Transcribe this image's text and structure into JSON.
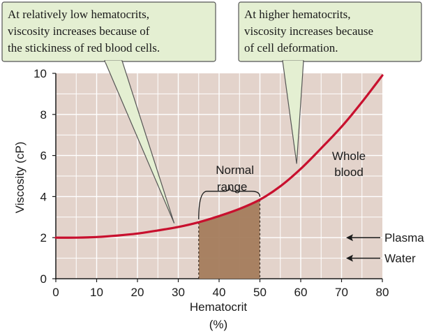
{
  "chart_data": {
    "type": "line",
    "xlabel": [
      "Hematocrit",
      "(%)"
    ],
    "ylabel": "Viscosity (cP)",
    "xlim": [
      0,
      80
    ],
    "ylim": [
      0,
      10
    ],
    "xticks": [
      0,
      10,
      20,
      30,
      40,
      50,
      60,
      70,
      80
    ],
    "yticks": [
      0,
      2,
      4,
      6,
      8,
      10
    ],
    "grid": true,
    "series": [
      {
        "name": "Whole blood",
        "color": "#c8102e",
        "x": [
          0,
          5,
          10,
          15,
          20,
          25,
          30,
          35,
          40,
          45,
          50,
          55,
          60,
          65,
          70,
          75,
          80
        ],
        "y": [
          2.0,
          2.0,
          2.03,
          2.1,
          2.2,
          2.35,
          2.52,
          2.75,
          3.05,
          3.4,
          3.85,
          4.5,
          5.35,
          6.35,
          7.4,
          8.6,
          9.9
        ]
      }
    ],
    "normal_range": {
      "label": [
        "Normal",
        "range"
      ],
      "x": [
        35,
        50
      ]
    },
    "reference_arrows": [
      {
        "label": "Plasma",
        "y": 2.0
      },
      {
        "label": "Water",
        "y": 1.0
      }
    ],
    "callouts": [
      {
        "lines": [
          "At relatively low hematocrits,",
          "viscosity increases because of",
          "the stickiness of red blood cells."
        ],
        "pointer_x": 29,
        "pointer_y": 2.7
      },
      {
        "lines": [
          "At higher hematocrits,",
          "viscosity increases because",
          "of cell deformation."
        ],
        "pointer_x": 59,
        "pointer_y": 5.6
      }
    ],
    "colors": {
      "plot_background": "#e3d3cb",
      "grid": "#ffffff",
      "normal_range_fill": "#a47c5c",
      "callout_fill": "#e4efd2",
      "callout_border": "#555555"
    }
  }
}
